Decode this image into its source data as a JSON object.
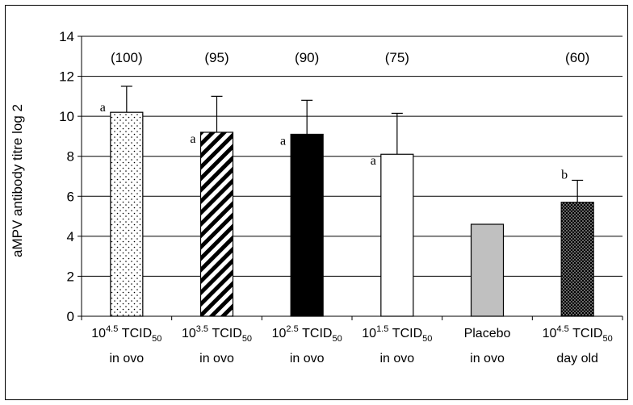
{
  "chart_data": {
    "type": "bar",
    "ylabel": "aMPV antibody titre log 2",
    "ylim": [
      0,
      14
    ],
    "yticks": [
      0,
      2,
      4,
      6,
      8,
      10,
      12,
      14
    ],
    "grid": true,
    "categories": [
      {
        "dose_base": "10",
        "dose_exp": "4.5",
        "unit": "TCID",
        "unit_sub": "50",
        "route": "in ovo"
      },
      {
        "dose_base": "10",
        "dose_exp": "3.5",
        "unit": "TCID",
        "unit_sub": "50",
        "route": "in ovo"
      },
      {
        "dose_base": "10",
        "dose_exp": "2.5",
        "unit": "TCID",
        "unit_sub": "50",
        "route": "in ovo"
      },
      {
        "dose_base": "10",
        "dose_exp": "1.5",
        "unit": "TCID",
        "unit_sub": "50",
        "route": "in ovo"
      },
      {
        "label": "Placebo",
        "route": "in ovo"
      },
      {
        "dose_base": "10",
        "dose_exp": "4.5",
        "unit": "TCID",
        "unit_sub": "50",
        "route": "day old"
      }
    ],
    "values": [
      10.2,
      9.2,
      9.1,
      8.1,
      4.6,
      5.7
    ],
    "errors": [
      1.3,
      1.8,
      1.7,
      2.05,
      0.0,
      1.1
    ],
    "percent_labels": [
      "(100)",
      "(95)",
      "(90)",
      "(75)",
      "",
      "(60)"
    ],
    "significance_letters": [
      "a",
      "a",
      "a",
      "a",
      "",
      "b"
    ],
    "fills": [
      "dots-sparse",
      "diagonal-stripes",
      "solid-black",
      "white",
      "solid-gray",
      "dots-dense"
    ],
    "colors": {
      "gray_fill": "#c0c0c0",
      "black": "#000000",
      "white": "#ffffff"
    }
  }
}
